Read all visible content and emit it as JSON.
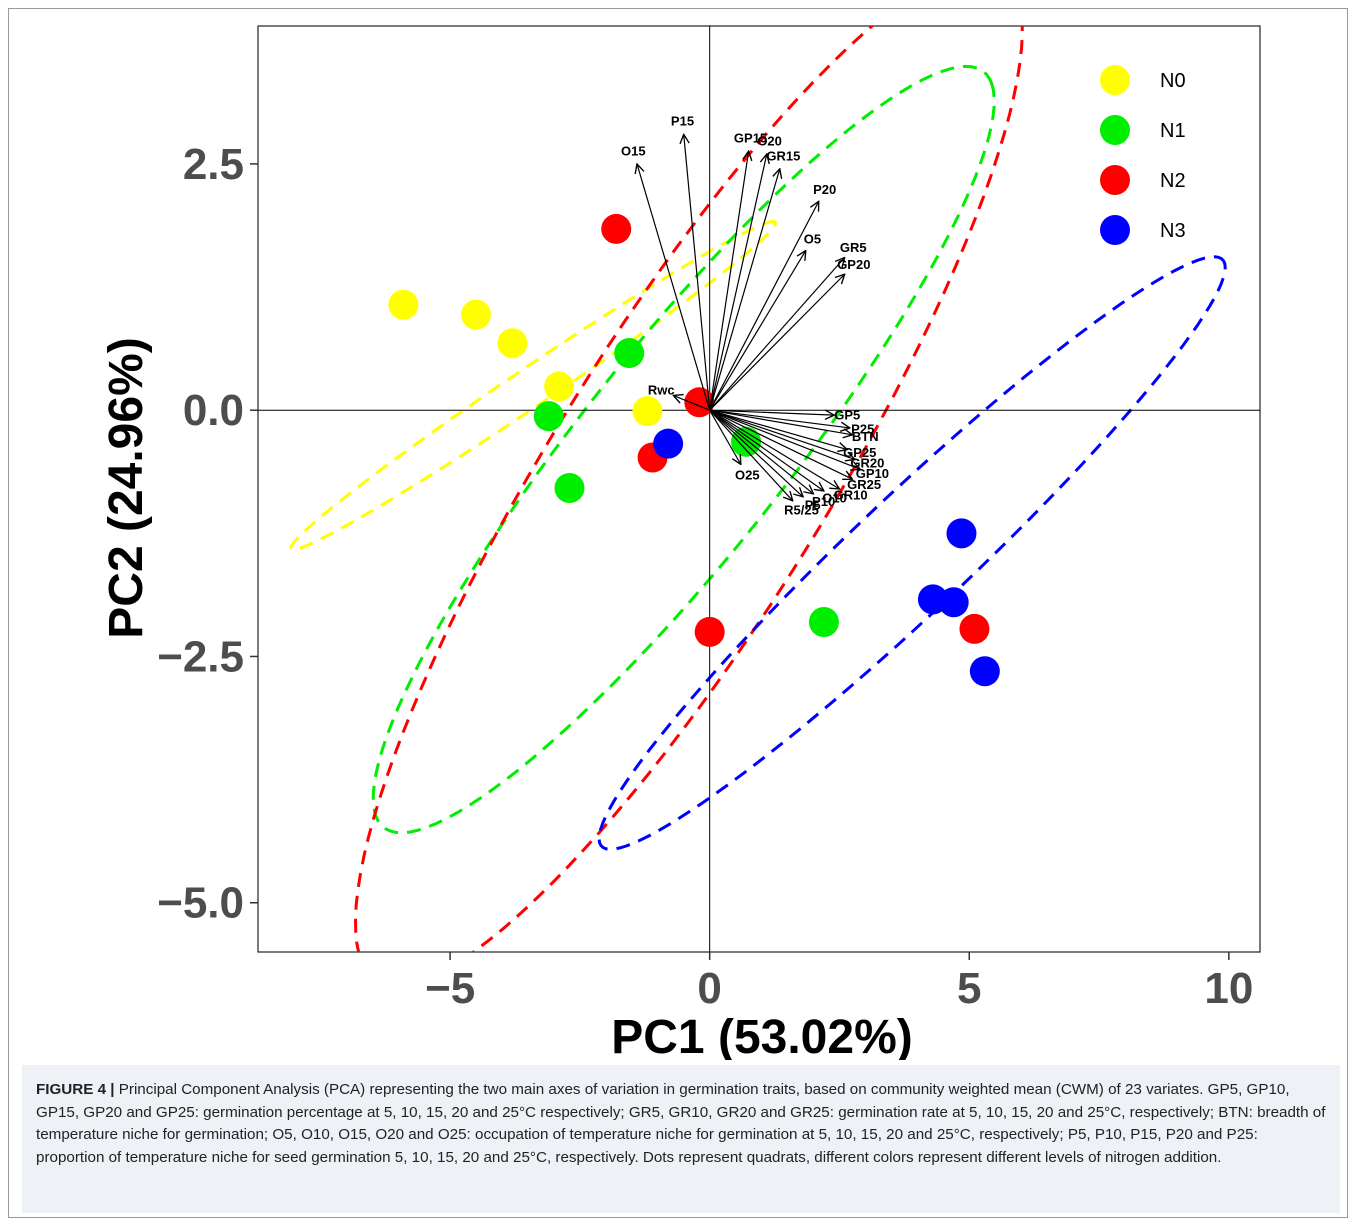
{
  "caption": {
    "label": "FIGURE 4 |",
    "text": "Principal Component Analysis (PCA) representing the two main axes of variation in germination traits, based on community weighted mean (CWM) of 23 variates. GP5, GP10, GP15, GP20 and GP25: germination percentage at 5, 10, 15, 20 and 25°C respectively; GR5, GR10, GR20 and GR25: germination rate at 5, 10, 15, 20 and 25°C, respectively; BTN: breadth of temperature niche for germination; O5, O10, O15, O20 and O25: occupation of temperature niche for germination at 5, 10, 15, 20 and 25°C, respectively; P5, P10, P15, P20 and P25: proportion of temperature niche for seed germination 5, 10, 15, 20 and 25°C, respectively. Dots represent quadrats, different colors represent different levels of nitrogen addition."
  },
  "chart_data": {
    "type": "scatter",
    "xlabel": "PC1 (53.02%)",
    "ylabel": "PC2 (24.96%)",
    "xlim": [
      -8.7,
      10.6
    ],
    "ylim": [
      -5.5,
      3.9
    ],
    "xticks": [
      -5,
      0,
      5,
      10
    ],
    "xtick_labels": [
      "−5",
      "0",
      "5",
      "10"
    ],
    "yticks": [
      -5,
      -2.5,
      0,
      2.5
    ],
    "ytick_labels": [
      "−5.0",
      "−2.5",
      "0.0",
      "2.5"
    ],
    "reference_lines": {
      "x": 0,
      "y": 0
    },
    "legend_position": "top-right",
    "series": [
      {
        "name": "N0",
        "color": "#ffff00",
        "points": [
          [
            -5.9,
            1.07
          ],
          [
            -4.5,
            0.97
          ],
          [
            -3.8,
            0.68
          ],
          [
            -2.9,
            0.24
          ],
          [
            -1.2,
            -0.01
          ]
        ],
        "ellipse": {
          "cx": -3.4,
          "cy": 0.25,
          "rx": 4.95,
          "ry": 0.22,
          "angle_deg": 19.5
        }
      },
      {
        "name": "N1",
        "color": "#00ee00",
        "points": [
          [
            -1.55,
            0.58
          ],
          [
            -3.1,
            -0.06
          ],
          [
            -2.7,
            -0.79
          ],
          [
            0.7,
            -0.32
          ],
          [
            2.2,
            -2.15
          ]
        ],
        "ellipse": {
          "cx": -0.5,
          "cy": -0.4,
          "rx": 7.0,
          "ry": 1.38,
          "angle_deg": 32
        }
      },
      {
        "name": "N2",
        "color": "#ff0000",
        "points": [
          [
            -1.8,
            1.84
          ],
          [
            -1.1,
            -0.48
          ],
          [
            -0.2,
            0.08
          ],
          [
            0.0,
            -2.25
          ],
          [
            5.1,
            -2.22
          ]
        ],
        "ellipse": {
          "cx": -0.4,
          "cy": -0.67,
          "rx": 8.0,
          "ry": 2.0,
          "angle_deg": 38
        }
      },
      {
        "name": "N3",
        "color": "#0000ff",
        "points": [
          [
            -0.8,
            -0.34
          ],
          [
            4.85,
            -1.25
          ],
          [
            4.3,
            -1.92
          ],
          [
            4.7,
            -1.95
          ],
          [
            5.3,
            -2.65
          ]
        ],
        "ellipse": {
          "cx": 3.9,
          "cy": -1.45,
          "rx": 6.7,
          "ry": 0.72,
          "angle_deg": 26
        }
      }
    ],
    "vectors": [
      {
        "label": "P15",
        "x": -0.5,
        "y": 2.8
      },
      {
        "label": "O15",
        "x": -1.4,
        "y": 2.5
      },
      {
        "label": "GP15",
        "x": 0.75,
        "y": 2.63
      },
      {
        "label": "O20",
        "x": 1.1,
        "y": 2.6
      },
      {
        "label": "GR15",
        "x": 1.35,
        "y": 2.45
      },
      {
        "label": "P20",
        "x": 2.1,
        "y": 2.12
      },
      {
        "label": "O5",
        "x": 1.85,
        "y": 1.62
      },
      {
        "label": "GR5",
        "x": 2.6,
        "y": 1.55
      },
      {
        "label": "GP20",
        "x": 2.6,
        "y": 1.38
      },
      {
        "label": "Rwc",
        "x": -0.7,
        "y": 0.15
      },
      {
        "label": "GP5",
        "x": 2.4,
        "y": -0.05
      },
      {
        "label": "P25",
        "x": 2.7,
        "y": -0.18
      },
      {
        "label": "BTN",
        "x": 2.75,
        "y": -0.25
      },
      {
        "label": "GP25",
        "x": 2.65,
        "y": -0.4
      },
      {
        "label": "GR20",
        "x": 2.8,
        "y": -0.5
      },
      {
        "label": "GP10",
        "x": 2.9,
        "y": -0.6
      },
      {
        "label": "GR25",
        "x": 2.75,
        "y": -0.7
      },
      {
        "label": "GR10",
        "x": 2.5,
        "y": -0.8
      },
      {
        "label": "O10",
        "x": 2.2,
        "y": -0.82
      },
      {
        "label": "P10",
        "x": 2.0,
        "y": -0.85
      },
      {
        "label": "P5",
        "x": 1.8,
        "y": -0.88
      },
      {
        "label": "R5/25",
        "x": 1.6,
        "y": -0.92
      },
      {
        "label": "O25",
        "x": 0.6,
        "y": -0.55
      }
    ]
  }
}
